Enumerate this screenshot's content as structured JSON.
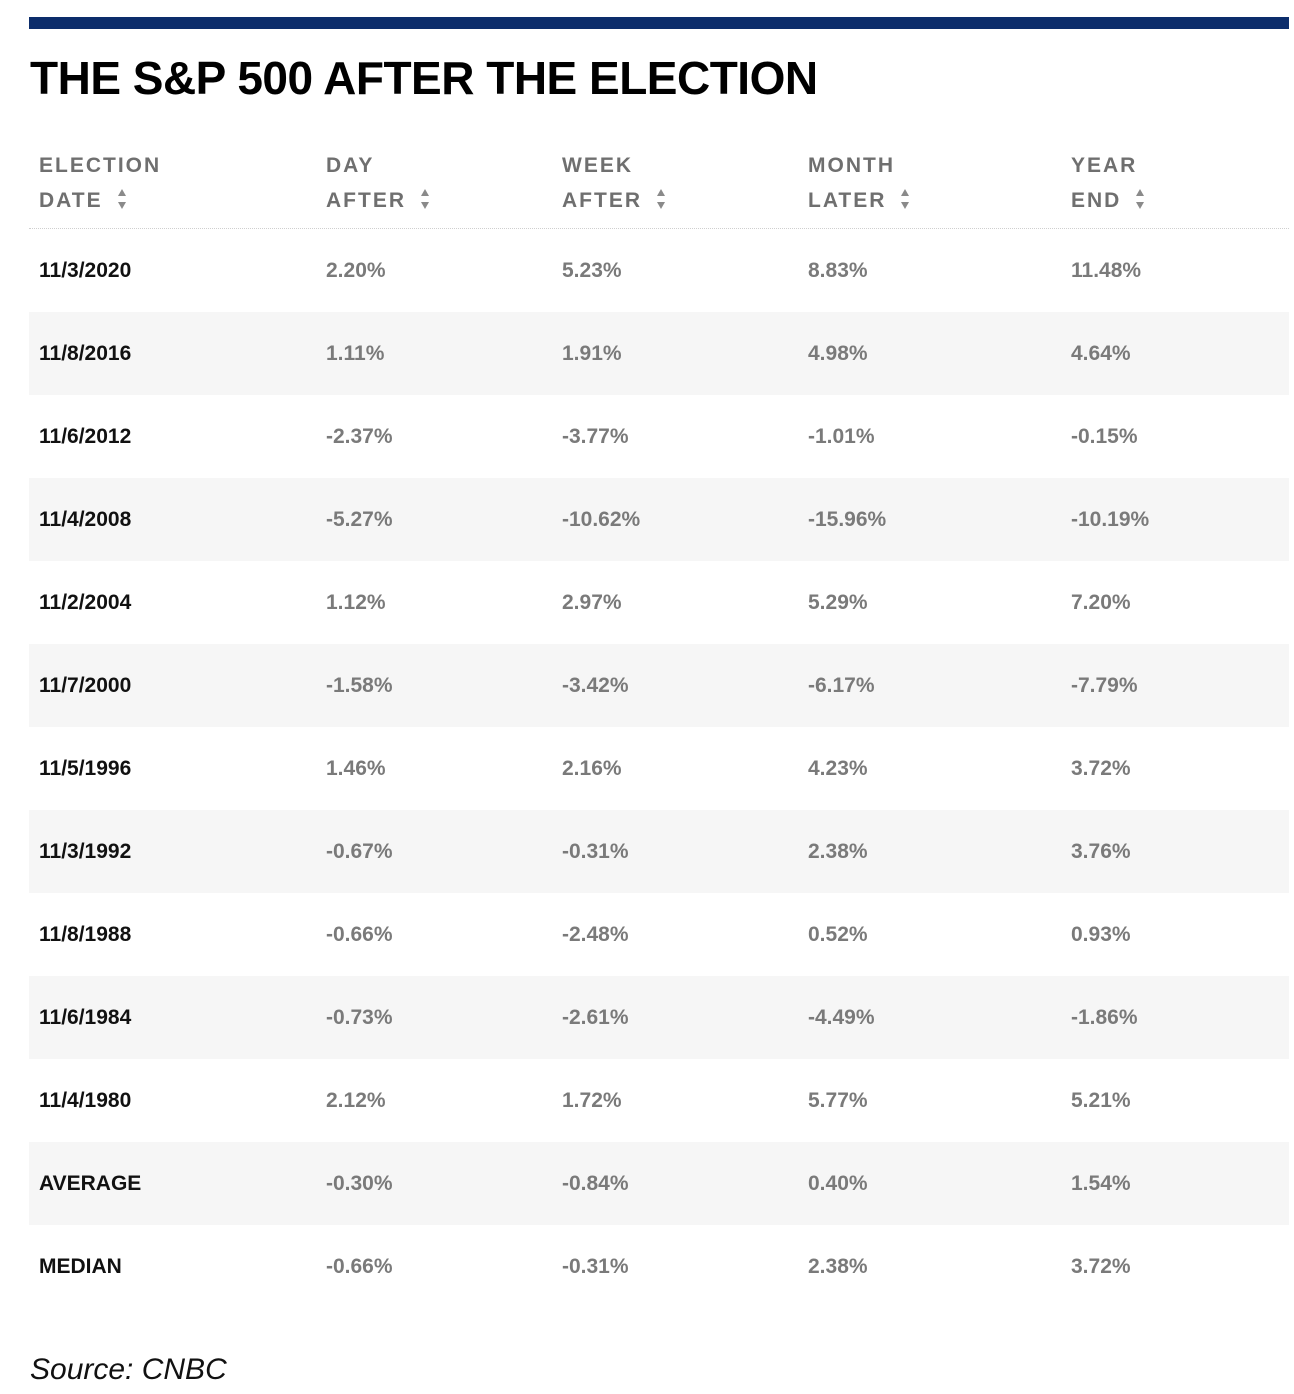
{
  "title": "THE S&P 500 AFTER THE ELECTION",
  "source": "Source: CNBC",
  "colors": {
    "top_rule": "#0c2d6b",
    "header_text": "#6f6f6f",
    "value_text": "#7a7a7a",
    "label_text": "#111111",
    "stripe": "#f6f6f6"
  },
  "header": [
    {
      "line1": "ELECTION",
      "line2": "DATE",
      "icon": "sort-icon"
    },
    {
      "line1": "DAY",
      "line2": "AFTER",
      "icon": "sort-icon"
    },
    {
      "line1": "WEEK",
      "line2": "AFTER",
      "icon": "sort-icon"
    },
    {
      "line1": "MONTH",
      "line2": "LATER",
      "icon": "sort-icon"
    },
    {
      "line1": "YEAR",
      "line2": "END",
      "icon": "sort-icon"
    }
  ],
  "rows": [
    [
      "11/3/2020",
      "2.20%",
      "5.23%",
      "8.83%",
      "11.48%"
    ],
    [
      "11/8/2016",
      "1.11%",
      "1.91%",
      "4.98%",
      "4.64%"
    ],
    [
      "11/6/2012",
      "-2.37%",
      "-3.77%",
      "-1.01%",
      "-0.15%"
    ],
    [
      "11/4/2008",
      "-5.27%",
      "-10.62%",
      "-15.96%",
      "-10.19%"
    ],
    [
      "11/2/2004",
      "1.12%",
      "2.97%",
      "5.29%",
      "7.20%"
    ],
    [
      "11/7/2000",
      "-1.58%",
      "-3.42%",
      "-6.17%",
      "-7.79%"
    ],
    [
      "11/5/1996",
      "1.46%",
      "2.16%",
      "4.23%",
      "3.72%"
    ],
    [
      "11/3/1992",
      "-0.67%",
      "-0.31%",
      "2.38%",
      "3.76%"
    ],
    [
      "11/8/1988",
      "-0.66%",
      "-2.48%",
      "0.52%",
      "0.93%"
    ],
    [
      "11/6/1984",
      "-0.73%",
      "-2.61%",
      "-4.49%",
      "-1.86%"
    ],
    [
      "11/4/1980",
      "2.12%",
      "1.72%",
      "5.77%",
      "5.21%"
    ],
    [
      "AVERAGE",
      "-0.30%",
      "-0.84%",
      "0.40%",
      "1.54%"
    ],
    [
      "MEDIAN",
      "-0.66%",
      "-0.31%",
      "2.38%",
      "3.72%"
    ]
  ],
  "chart_data": {
    "type": "table",
    "title": "THE S&P 500 AFTER THE ELECTION",
    "columns": [
      "ELECTION DATE",
      "DAY AFTER",
      "WEEK AFTER",
      "MONTH LATER",
      "YEAR END"
    ],
    "rows": [
      [
        "11/3/2020",
        "2.20%",
        "5.23%",
        "8.83%",
        "11.48%"
      ],
      [
        "11/8/2016",
        "1.11%",
        "1.91%",
        "4.98%",
        "4.64%"
      ],
      [
        "11/6/2012",
        "-2.37%",
        "-3.77%",
        "-1.01%",
        "-0.15%"
      ],
      [
        "11/4/2008",
        "-5.27%",
        "-10.62%",
        "-15.96%",
        "-10.19%"
      ],
      [
        "11/2/2004",
        "1.12%",
        "2.97%",
        "5.29%",
        "7.20%"
      ],
      [
        "11/7/2000",
        "-1.58%",
        "-3.42%",
        "-6.17%",
        "-7.79%"
      ],
      [
        "11/5/1996",
        "1.46%",
        "2.16%",
        "4.23%",
        "3.72%"
      ],
      [
        "11/3/1992",
        "-0.67%",
        "-0.31%",
        "2.38%",
        "3.76%"
      ],
      [
        "11/8/1988",
        "-0.66%",
        "-2.48%",
        "0.52%",
        "0.93%"
      ],
      [
        "11/6/1984",
        "-0.73%",
        "-2.61%",
        "-4.49%",
        "-1.86%"
      ],
      [
        "11/4/1980",
        "2.12%",
        "1.72%",
        "5.77%",
        "5.21%"
      ],
      [
        "AVERAGE",
        "-0.30%",
        "-0.84%",
        "0.40%",
        "1.54%"
      ],
      [
        "MEDIAN",
        "-0.66%",
        "-0.31%",
        "2.38%",
        "3.72%"
      ]
    ]
  }
}
